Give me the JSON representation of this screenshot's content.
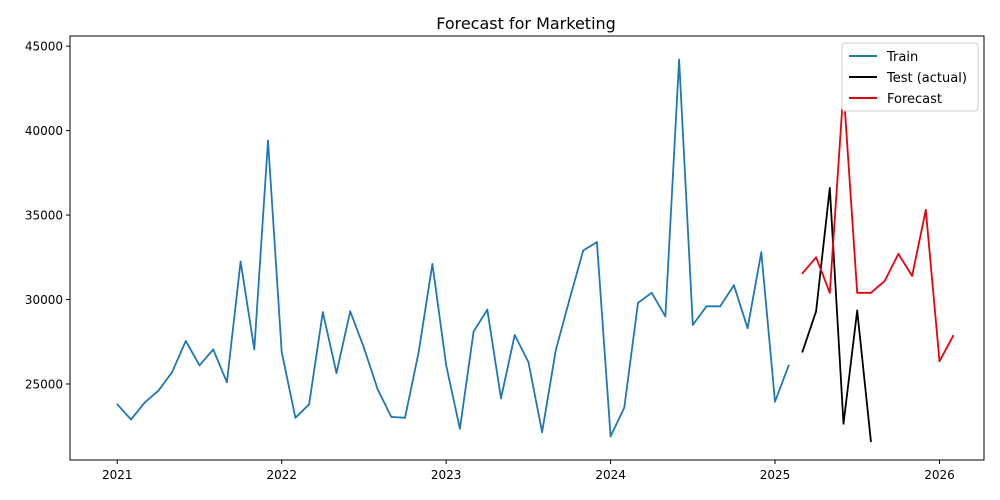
{
  "chart_data": {
    "type": "line",
    "title": "Forecast for Marketing",
    "xlabel": "",
    "ylabel": "",
    "x_ticks": [
      "2021",
      "2022",
      "2023",
      "2024",
      "2025",
      "2026"
    ],
    "y_ticks": [
      25000,
      30000,
      35000,
      40000,
      45000
    ],
    "y_tick_labels": [
      "25000",
      "30000",
      "35000",
      "40000",
      "45000"
    ],
    "ylim": [
      20500,
      45600
    ],
    "xlim": [
      "2020-09",
      "2026-04"
    ],
    "grid": false,
    "legend_position": "top-right",
    "series": [
      {
        "name": "Train",
        "color": "#1f77b4",
        "x": [
          "2021-01",
          "2021-02",
          "2021-03",
          "2021-04",
          "2021-05",
          "2021-06",
          "2021-07",
          "2021-08",
          "2021-09",
          "2021-10",
          "2021-11",
          "2021-12",
          "2022-01",
          "2022-02",
          "2022-03",
          "2022-04",
          "2022-05",
          "2022-06",
          "2022-07",
          "2022-08",
          "2022-09",
          "2022-10",
          "2022-11",
          "2022-12",
          "2023-01",
          "2023-02",
          "2023-03",
          "2023-04",
          "2023-05",
          "2023-06",
          "2023-07",
          "2023-08",
          "2023-09",
          "2023-10",
          "2023-11",
          "2023-12",
          "2024-01",
          "2024-02",
          "2024-03",
          "2024-04",
          "2024-05",
          "2024-06",
          "2024-07",
          "2024-08",
          "2024-09",
          "2024-10",
          "2024-11",
          "2024-12",
          "2025-01",
          "2025-02"
        ],
        "values": [
          23800,
          22900,
          23900,
          24600,
          25700,
          27550,
          26100,
          27050,
          25100,
          32250,
          27050,
          39400,
          26900,
          23000,
          23800,
          29250,
          25650,
          29300,
          27150,
          24700,
          23050,
          23000,
          26900,
          32100,
          26100,
          22350,
          28100,
          29400,
          24150,
          27900,
          26300,
          22150,
          27000,
          30000,
          32900,
          33400,
          21900,
          23600,
          29800,
          30400,
          29000,
          44200,
          28500,
          29600,
          29600,
          30850,
          28300,
          32800,
          23950,
          26100
        ]
      },
      {
        "name": "Test (actual)",
        "color": "#000000",
        "x": [
          "2025-03",
          "2025-04",
          "2025-05",
          "2025-06",
          "2025-07",
          "2025-08"
        ],
        "values": [
          26900,
          29300,
          36600,
          22650,
          29350,
          21600
        ]
      },
      {
        "name": "Forecast",
        "color": "#e8000b",
        "x": [
          "2025-03",
          "2025-04",
          "2025-05",
          "2025-06",
          "2025-07",
          "2025-08",
          "2025-09",
          "2025-10",
          "2025-11",
          "2025-12",
          "2026-01",
          "2026-02"
        ],
        "values": [
          31550,
          32500,
          30400,
          42450,
          30400,
          30400,
          31100,
          32700,
          31400,
          35300,
          26350,
          27850
        ]
      }
    ]
  }
}
